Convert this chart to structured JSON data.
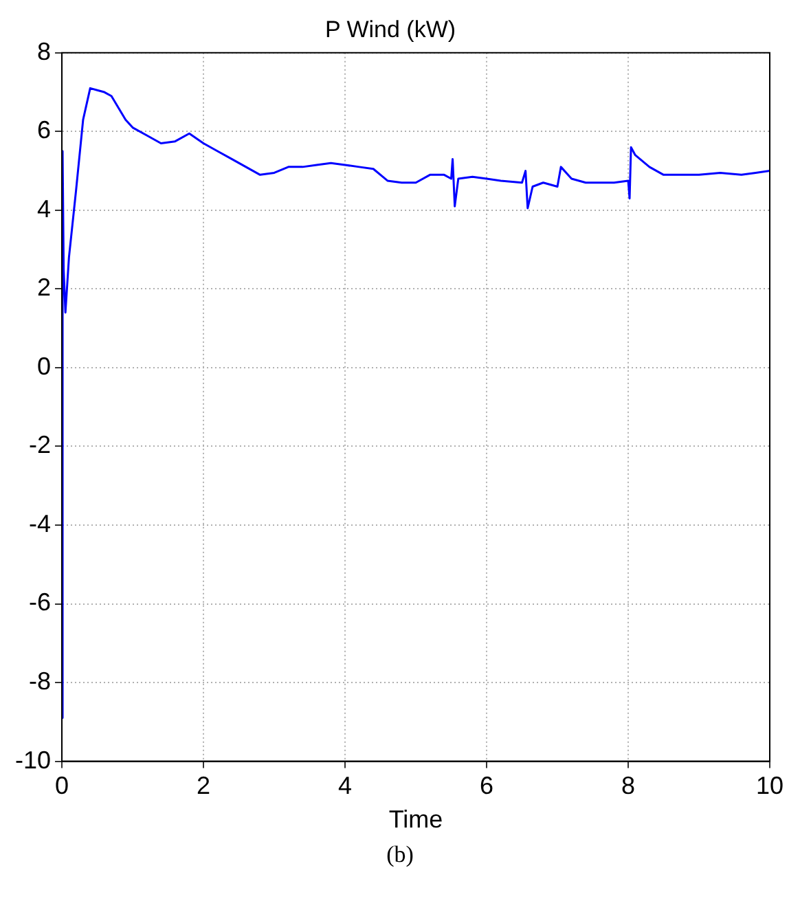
{
  "chart_data": {
    "type": "line",
    "title": "P Wind (kW)",
    "xlabel": "Time",
    "annotations": [
      "(b)"
    ],
    "x": [
      0,
      0.005,
      0.015,
      0.025,
      0.05,
      0.1,
      0.2,
      0.3,
      0.4,
      0.5,
      0.6,
      0.7,
      0.8,
      0.9,
      1.0,
      1.2,
      1.4,
      1.6,
      1.8,
      2.0,
      2.2,
      2.4,
      2.6,
      2.8,
      3.0,
      3.2,
      3.4,
      3.6,
      3.8,
      4.0,
      4.2,
      4.4,
      4.6,
      4.8,
      5.0,
      5.2,
      5.4,
      5.5,
      5.52,
      5.55,
      5.6,
      5.8,
      6.0,
      6.2,
      6.5,
      6.55,
      6.58,
      6.65,
      6.8,
      7.0,
      7.05,
      7.2,
      7.4,
      7.6,
      7.8,
      8.0,
      8.02,
      8.04,
      8.1,
      8.3,
      8.5,
      8.8,
      9.0,
      9.3,
      9.6,
      9.8,
      10
    ],
    "series": [
      {
        "color": "#0000ff",
        "values": [
          0.5,
          -8.9,
          5.5,
          2.5,
          1.4,
          2.8,
          4.5,
          6.3,
          7.1,
          7.05,
          7.0,
          6.9,
          6.6,
          6.3,
          6.1,
          5.9,
          5.7,
          5.75,
          5.95,
          5.7,
          5.5,
          5.3,
          5.1,
          4.9,
          4.95,
          5.1,
          5.1,
          5.15,
          5.2,
          5.15,
          5.1,
          5.05,
          4.75,
          4.7,
          4.7,
          4.9,
          4.9,
          4.8,
          5.3,
          4.1,
          4.8,
          4.85,
          4.8,
          4.75,
          4.7,
          5.0,
          4.05,
          4.6,
          4.7,
          4.6,
          5.1,
          4.8,
          4.7,
          4.7,
          4.7,
          4.75,
          4.3,
          5.6,
          5.4,
          5.1,
          4.9,
          4.9,
          4.9,
          4.95,
          4.9,
          4.95,
          5.0
        ]
      }
    ],
    "xlim": [
      0,
      10
    ],
    "xticks": [
      0,
      2,
      4,
      6,
      8,
      10
    ],
    "ylim": [
      -10,
      8
    ],
    "yticks": [
      -10,
      -8,
      -6,
      -4,
      -2,
      0,
      2,
      4,
      6,
      8
    ],
    "grid": true,
    "legend": false,
    "marker": "none",
    "line_style": "solid"
  }
}
